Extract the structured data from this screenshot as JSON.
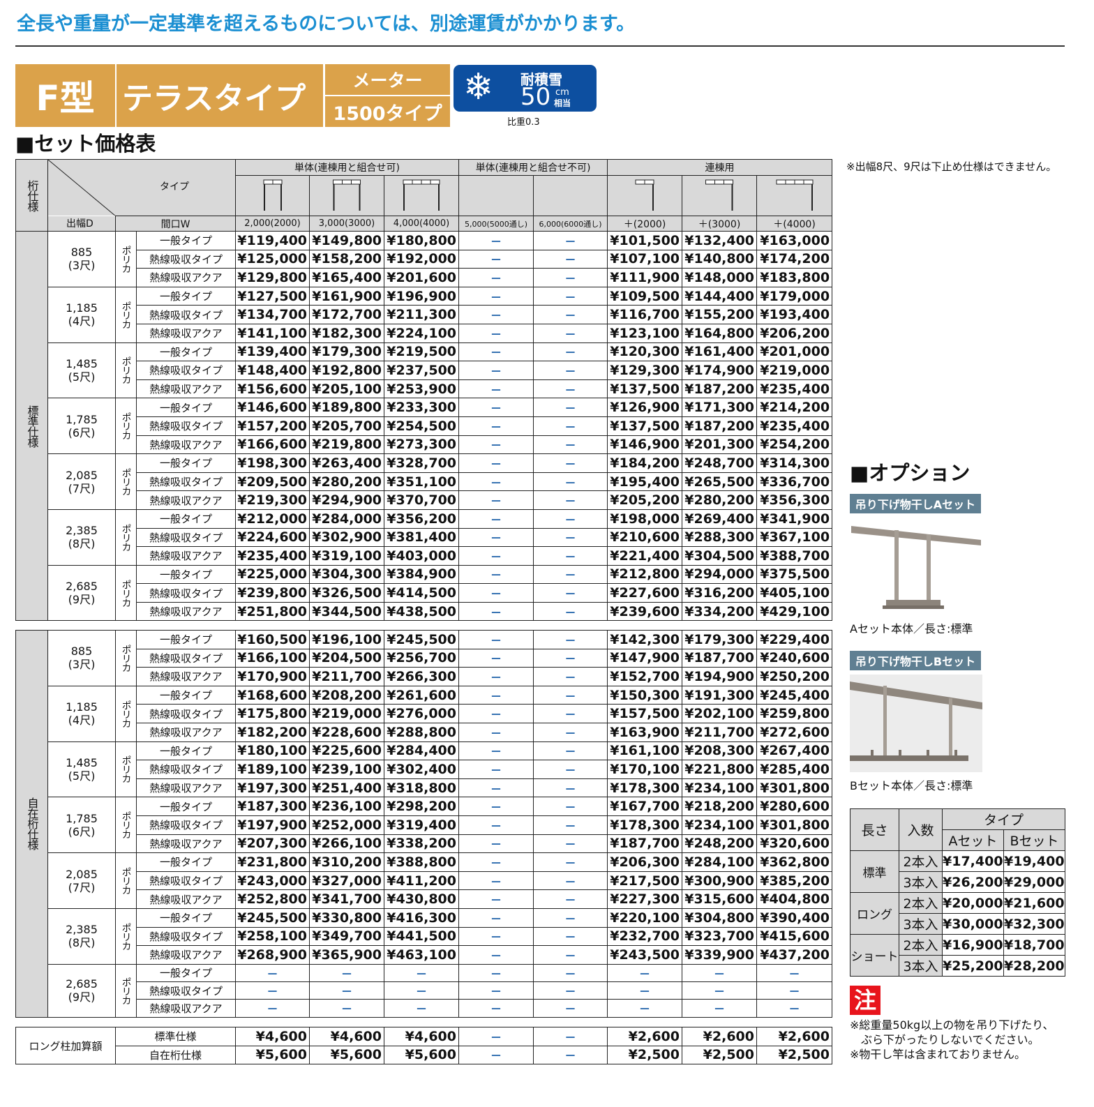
{
  "top_notice": "全長や重量が一定基準を超えるものについては、別途運賃がかかります。",
  "product": {
    "model": "F型",
    "type": "テラスタイプ",
    "sub_top": "メーター",
    "sub_bottom": "1500タイプ"
  },
  "snow_badge": {
    "icon": "snowflake-icon",
    "label": "耐積雪",
    "value": "50",
    "unit_top": "cm",
    "unit_bottom": "相当",
    "ratio": "比重0.3",
    "color": "#0d4fa0"
  },
  "section_title": "■セット価格表",
  "side_note": "※出幅8尺、9尺は下止め仕様はできません。",
  "table": {
    "header": {
      "spec": "桁仕様",
      "type": "タイプ",
      "depth": "出幅D",
      "width": "間口W",
      "groups": [
        "単体(連棟用と組合せ可)",
        "単体(連棟用と組合せ不可)",
        "連棟用"
      ],
      "widths": [
        "2,000(2000)",
        "3,000(3000)",
        "4,000(4000)",
        "5,000(5000通し)",
        "6,000(6000通し)",
        "＋(2000)",
        "＋(3000)",
        "＋(4000)"
      ]
    },
    "blocks": [
      {
        "spec": "標準仕様",
        "sizes": [
          {
            "d": "885",
            "s": "(3尺)",
            "m": "ポリカ",
            "rows": [
              [
                "一般タイプ",
                "¥119,400",
                "¥149,800",
                "¥180,800",
                "－",
                "－",
                "¥101,500",
                "¥132,400",
                "¥163,000"
              ],
              [
                "熱線吸収タイプ",
                "¥125,000",
                "¥158,200",
                "¥192,000",
                "－",
                "－",
                "¥107,100",
                "¥140,800",
                "¥174,200"
              ],
              [
                "熱線吸収アクア",
                "¥129,800",
                "¥165,400",
                "¥201,600",
                "－",
                "－",
                "¥111,900",
                "¥148,000",
                "¥183,800"
              ]
            ]
          },
          {
            "d": "1,185",
            "s": "(4尺)",
            "m": "ポリカ",
            "rows": [
              [
                "一般タイプ",
                "¥127,500",
                "¥161,900",
                "¥196,900",
                "－",
                "－",
                "¥109,500",
                "¥144,400",
                "¥179,000"
              ],
              [
                "熱線吸収タイプ",
                "¥134,700",
                "¥172,700",
                "¥211,300",
                "－",
                "－",
                "¥116,700",
                "¥155,200",
                "¥193,400"
              ],
              [
                "熱線吸収アクア",
                "¥141,100",
                "¥182,300",
                "¥224,100",
                "－",
                "－",
                "¥123,100",
                "¥164,800",
                "¥206,200"
              ]
            ]
          },
          {
            "d": "1,485",
            "s": "(5尺)",
            "m": "ポリカ",
            "rows": [
              [
                "一般タイプ",
                "¥139,400",
                "¥179,300",
                "¥219,500",
                "－",
                "－",
                "¥120,300",
                "¥161,400",
                "¥201,000"
              ],
              [
                "熱線吸収タイプ",
                "¥148,400",
                "¥192,800",
                "¥237,500",
                "－",
                "－",
                "¥129,300",
                "¥174,900",
                "¥219,000"
              ],
              [
                "熱線吸収アクア",
                "¥156,600",
                "¥205,100",
                "¥253,900",
                "－",
                "－",
                "¥137,500",
                "¥187,200",
                "¥235,400"
              ]
            ]
          },
          {
            "d": "1,785",
            "s": "(6尺)",
            "m": "ポリカ",
            "rows": [
              [
                "一般タイプ",
                "¥146,600",
                "¥189,800",
                "¥233,300",
                "－",
                "－",
                "¥126,900",
                "¥171,300",
                "¥214,200"
              ],
              [
                "熱線吸収タイプ",
                "¥157,200",
                "¥205,700",
                "¥254,500",
                "－",
                "－",
                "¥137,500",
                "¥187,200",
                "¥235,400"
              ],
              [
                "熱線吸収アクア",
                "¥166,600",
                "¥219,800",
                "¥273,300",
                "－",
                "－",
                "¥146,900",
                "¥201,300",
                "¥254,200"
              ]
            ]
          },
          {
            "d": "2,085",
            "s": "(7尺)",
            "m": "ポリカ",
            "rows": [
              [
                "一般タイプ",
                "¥198,300",
                "¥263,400",
                "¥328,700",
                "－",
                "－",
                "¥184,200",
                "¥248,700",
                "¥314,300"
              ],
              [
                "熱線吸収タイプ",
                "¥209,500",
                "¥280,200",
                "¥351,100",
                "－",
                "－",
                "¥195,400",
                "¥265,500",
                "¥336,700"
              ],
              [
                "熱線吸収アクア",
                "¥219,300",
                "¥294,900",
                "¥370,700",
                "－",
                "－",
                "¥205,200",
                "¥280,200",
                "¥356,300"
              ]
            ]
          },
          {
            "d": "2,385",
            "s": "(8尺)",
            "m": "ポリカ",
            "rows": [
              [
                "一般タイプ",
                "¥212,000",
                "¥284,000",
                "¥356,200",
                "－",
                "－",
                "¥198,000",
                "¥269,400",
                "¥341,900"
              ],
              [
                "熱線吸収タイプ",
                "¥224,600",
                "¥302,900",
                "¥381,400",
                "－",
                "－",
                "¥210,600",
                "¥288,300",
                "¥367,100"
              ],
              [
                "熱線吸収アクア",
                "¥235,400",
                "¥319,100",
                "¥403,000",
                "－",
                "－",
                "¥221,400",
                "¥304,500",
                "¥388,700"
              ]
            ]
          },
          {
            "d": "2,685",
            "s": "(9尺)",
            "m": "ポリカ",
            "rows": [
              [
                "一般タイプ",
                "¥225,000",
                "¥304,300",
                "¥384,900",
                "－",
                "－",
                "¥212,800",
                "¥294,000",
                "¥375,500"
              ],
              [
                "熱線吸収タイプ",
                "¥239,800",
                "¥326,500",
                "¥414,500",
                "－",
                "－",
                "¥227,600",
                "¥316,200",
                "¥405,100"
              ],
              [
                "熱線吸収アクア",
                "¥251,800",
                "¥344,500",
                "¥438,500",
                "－",
                "－",
                "¥239,600",
                "¥334,200",
                "¥429,100"
              ]
            ]
          }
        ]
      },
      {
        "spec": "自在桁仕様",
        "sizes": [
          {
            "d": "885",
            "s": "(3尺)",
            "m": "ポリカ",
            "rows": [
              [
                "一般タイプ",
                "¥160,500",
                "¥196,100",
                "¥245,500",
                "－",
                "－",
                "¥142,300",
                "¥179,300",
                "¥229,400"
              ],
              [
                "熱線吸収タイプ",
                "¥166,100",
                "¥204,500",
                "¥256,700",
                "－",
                "－",
                "¥147,900",
                "¥187,700",
                "¥240,600"
              ],
              [
                "熱線吸収アクア",
                "¥170,900",
                "¥211,700",
                "¥266,300",
                "－",
                "－",
                "¥152,700",
                "¥194,900",
                "¥250,200"
              ]
            ]
          },
          {
            "d": "1,185",
            "s": "(4尺)",
            "m": "ポリカ",
            "rows": [
              [
                "一般タイプ",
                "¥168,600",
                "¥208,200",
                "¥261,600",
                "－",
                "－",
                "¥150,300",
                "¥191,300",
                "¥245,400"
              ],
              [
                "熱線吸収タイプ",
                "¥175,800",
                "¥219,000",
                "¥276,000",
                "－",
                "－",
                "¥157,500",
                "¥202,100",
                "¥259,800"
              ],
              [
                "熱線吸収アクア",
                "¥182,200",
                "¥228,600",
                "¥288,800",
                "－",
                "－",
                "¥163,900",
                "¥211,700",
                "¥272,600"
              ]
            ]
          },
          {
            "d": "1,485",
            "s": "(5尺)",
            "m": "ポリカ",
            "rows": [
              [
                "一般タイプ",
                "¥180,100",
                "¥225,600",
                "¥284,400",
                "－",
                "－",
                "¥161,100",
                "¥208,300",
                "¥267,400"
              ],
              [
                "熱線吸収タイプ",
                "¥189,100",
                "¥239,100",
                "¥302,400",
                "－",
                "－",
                "¥170,100",
                "¥221,800",
                "¥285,400"
              ],
              [
                "熱線吸収アクア",
                "¥197,300",
                "¥251,400",
                "¥318,800",
                "－",
                "－",
                "¥178,300",
                "¥234,100",
                "¥301,800"
              ]
            ]
          },
          {
            "d": "1,785",
            "s": "(6尺)",
            "m": "ポリカ",
            "rows": [
              [
                "一般タイプ",
                "¥187,300",
                "¥236,100",
                "¥298,200",
                "－",
                "－",
                "¥167,700",
                "¥218,200",
                "¥280,600"
              ],
              [
                "熱線吸収タイプ",
                "¥197,900",
                "¥252,000",
                "¥319,400",
                "－",
                "－",
                "¥178,300",
                "¥234,100",
                "¥301,800"
              ],
              [
                "熱線吸収アクア",
                "¥207,300",
                "¥266,100",
                "¥338,200",
                "－",
                "－",
                "¥187,700",
                "¥248,200",
                "¥320,600"
              ]
            ]
          },
          {
            "d": "2,085",
            "s": "(7尺)",
            "m": "ポリカ",
            "rows": [
              [
                "一般タイプ",
                "¥231,800",
                "¥310,200",
                "¥388,800",
                "－",
                "－",
                "¥206,300",
                "¥284,100",
                "¥362,800"
              ],
              [
                "熱線吸収タイプ",
                "¥243,000",
                "¥327,000",
                "¥411,200",
                "－",
                "－",
                "¥217,500",
                "¥300,900",
                "¥385,200"
              ],
              [
                "熱線吸収アクア",
                "¥252,800",
                "¥341,700",
                "¥430,800",
                "－",
                "－",
                "¥227,300",
                "¥315,600",
                "¥404,800"
              ]
            ]
          },
          {
            "d": "2,385",
            "s": "(8尺)",
            "m": "ポリカ",
            "rows": [
              [
                "一般タイプ",
                "¥245,500",
                "¥330,800",
                "¥416,300",
                "－",
                "－",
                "¥220,100",
                "¥304,800",
                "¥390,400"
              ],
              [
                "熱線吸収タイプ",
                "¥258,100",
                "¥349,700",
                "¥441,500",
                "－",
                "－",
                "¥232,700",
                "¥323,700",
                "¥415,600"
              ],
              [
                "熱線吸収アクア",
                "¥268,900",
                "¥365,900",
                "¥463,100",
                "－",
                "－",
                "¥243,500",
                "¥339,900",
                "¥437,200"
              ]
            ]
          },
          {
            "d": "2,685",
            "s": "(9尺)",
            "m": "ポリカ",
            "rows": [
              [
                "一般タイプ",
                "－",
                "－",
                "－",
                "－",
                "－",
                "－",
                "－",
                "－"
              ],
              [
                "熱線吸収タイプ",
                "－",
                "－",
                "－",
                "－",
                "－",
                "－",
                "－",
                "－"
              ],
              [
                "熱線吸収アクア",
                "－",
                "－",
                "－",
                "－",
                "－",
                "－",
                "－",
                "－"
              ]
            ]
          }
        ]
      }
    ],
    "long_post": {
      "label": "ロング柱加算額",
      "rows": [
        [
          "標準仕様",
          "¥4,600",
          "¥4,600",
          "¥4,600",
          "－",
          "－",
          "¥2,600",
          "¥2,600",
          "¥2,600"
        ],
        [
          "自在桁仕様",
          "¥5,600",
          "¥5,600",
          "¥5,600",
          "－",
          "－",
          "¥2,500",
          "¥2,500",
          "¥2,500"
        ]
      ]
    }
  },
  "options": {
    "title": "■オプション",
    "a_label": "吊り下げ物干しAセット",
    "a_caption": "Aセット本体／長さ:標準",
    "b_label": "吊り下げ物干しBセット",
    "b_caption": "Bセット本体／長さ:標準",
    "table": {
      "h_length": "長さ",
      "h_qty": "入数",
      "h_type": "タイプ",
      "h_a": "Aセット",
      "h_b": "Bセット",
      "groups": [
        {
          "len": "標準",
          "rows": [
            [
              "2本入",
              "¥17,400",
              "¥19,400"
            ],
            [
              "3本入",
              "¥26,200",
              "¥29,000"
            ]
          ]
        },
        {
          "len": "ロング",
          "rows": [
            [
              "2本入",
              "¥20,000",
              "¥21,600"
            ],
            [
              "3本入",
              "¥30,000",
              "¥32,300"
            ]
          ]
        },
        {
          "len": "ショート",
          "rows": [
            [
              "2本入",
              "¥16,900",
              "¥18,700"
            ],
            [
              "3本入",
              "¥25,200",
              "¥28,200"
            ]
          ]
        }
      ]
    },
    "caution_mark": "注",
    "notes": [
      "※総重量50kg以上の物を吊り下げたり、",
      "　ぶら下がったりしないでください。",
      "※物干し竿は含まれておりません。"
    ]
  }
}
